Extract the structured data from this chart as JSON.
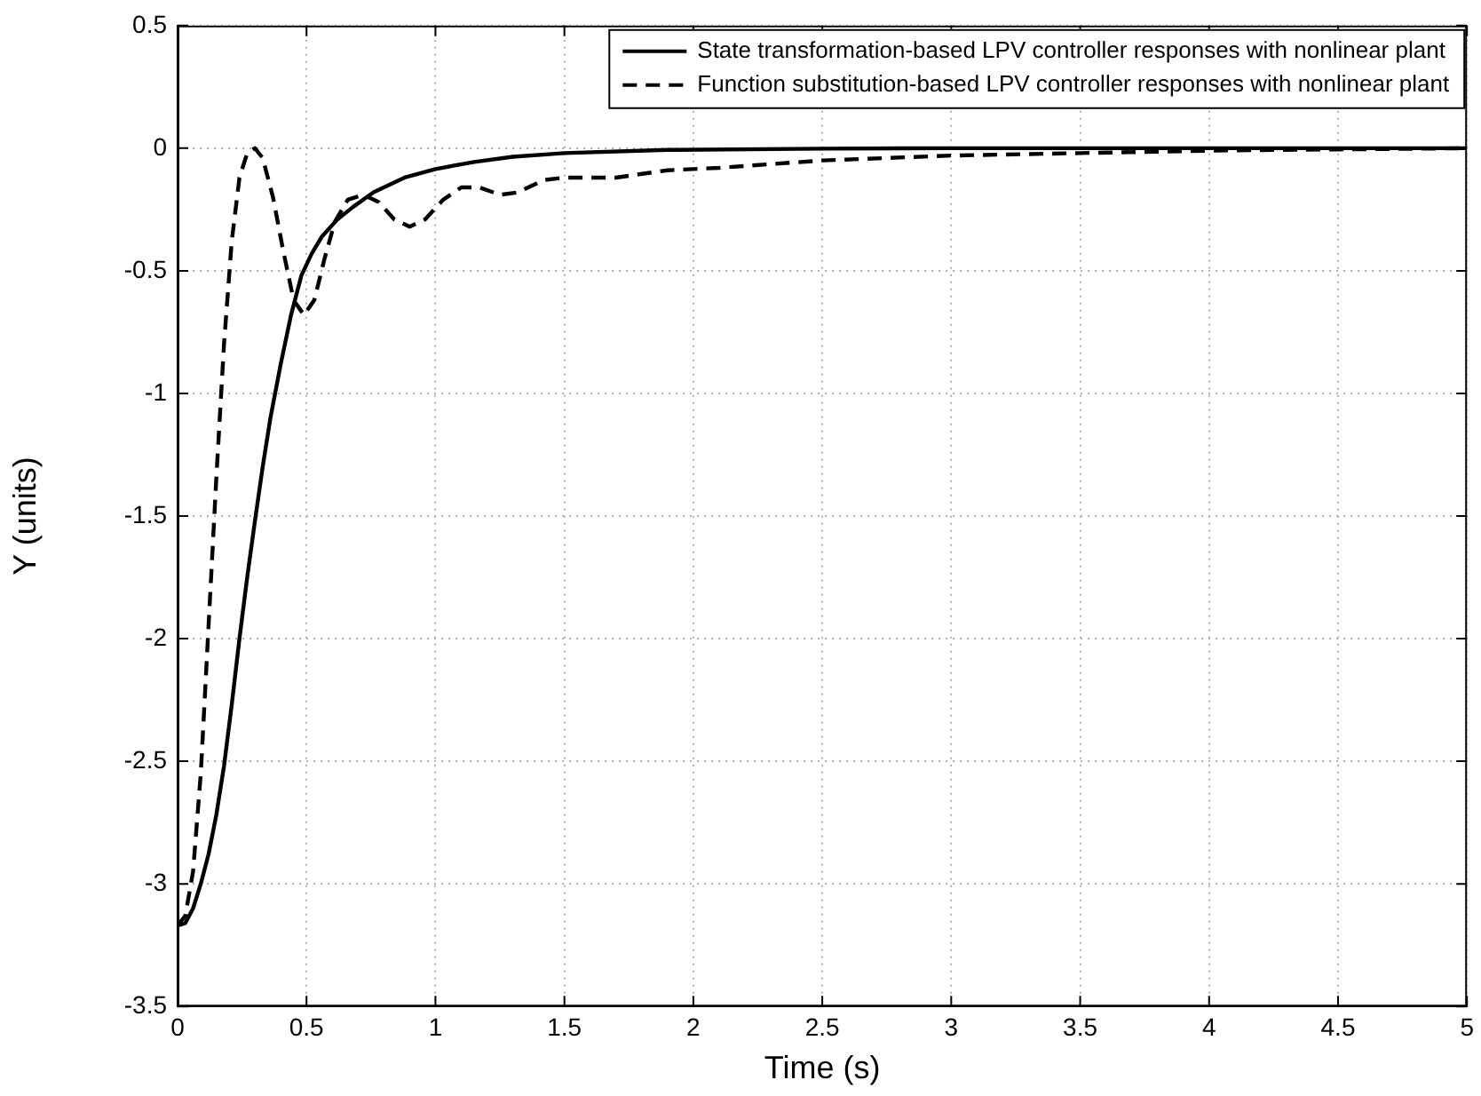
{
  "chart_data": {
    "type": "line",
    "xlabel": "Time (s)",
    "ylabel": "Y (units)",
    "xlim": [
      0,
      5
    ],
    "xticks": [
      0,
      0.5,
      1,
      1.5,
      2,
      2.5,
      3,
      3.5,
      4,
      4.5,
      5
    ],
    "ylim": [
      -3.5,
      0.5
    ],
    "yticks": [
      -3.5,
      -3,
      -2.5,
      -2,
      -1.5,
      -1,
      -0.5,
      0,
      0.5
    ],
    "grid": true,
    "legend": "top right",
    "marker": "none",
    "series": [
      {
        "name": "State transformation-based LPV controller responses with nonlinear plant",
        "color": "#000000",
        "line_style": "solid",
        "x": [
          0,
          0.03,
          0.06,
          0.09,
          0.12,
          0.15,
          0.18,
          0.21,
          0.24,
          0.27,
          0.3,
          0.33,
          0.36,
          0.4,
          0.44,
          0.48,
          0.52,
          0.56,
          0.62,
          0.68,
          0.76,
          0.88,
          1,
          1.15,
          1.3,
          1.5,
          1.9,
          2.5,
          3,
          5
        ],
        "values": [
          -3.17,
          -3.16,
          -3.1,
          -3.0,
          -2.88,
          -2.72,
          -2.52,
          -2.27,
          -2.0,
          -1.75,
          -1.52,
          -1.3,
          -1.1,
          -0.88,
          -0.68,
          -0.52,
          -0.43,
          -0.36,
          -0.29,
          -0.24,
          -0.18,
          -0.12,
          -0.085,
          -0.056,
          -0.035,
          -0.02,
          -0.007,
          -0.002,
          0,
          0
        ]
      },
      {
        "name": "Function substitution-based LPV controller responses with nonlinear plant",
        "color": "#000000",
        "line_style": "dashed",
        "x": [
          0,
          0.03,
          0.06,
          0.09,
          0.12,
          0.15,
          0.18,
          0.21,
          0.24,
          0.27,
          0.3,
          0.33,
          0.37,
          0.41,
          0.45,
          0.49,
          0.53,
          0.57,
          0.61,
          0.66,
          0.72,
          0.78,
          0.84,
          0.9,
          0.96,
          1.03,
          1.1,
          1.17,
          1.25,
          1.32,
          1.42,
          1.5,
          1.7,
          1.9,
          2.1,
          2.5,
          3,
          3.5,
          4,
          4.5,
          5
        ],
        "values": [
          -3.17,
          -3.13,
          -2.95,
          -2.55,
          -1.95,
          -1.35,
          -0.8,
          -0.38,
          -0.12,
          -0.02,
          0,
          -0.04,
          -0.2,
          -0.42,
          -0.62,
          -0.68,
          -0.62,
          -0.45,
          -0.3,
          -0.21,
          -0.19,
          -0.22,
          -0.29,
          -0.32,
          -0.29,
          -0.21,
          -0.16,
          -0.16,
          -0.19,
          -0.18,
          -0.13,
          -0.12,
          -0.12,
          -0.09,
          -0.08,
          -0.05,
          -0.03,
          -0.02,
          -0.01,
          -0.005,
          0
        ]
      }
    ]
  }
}
